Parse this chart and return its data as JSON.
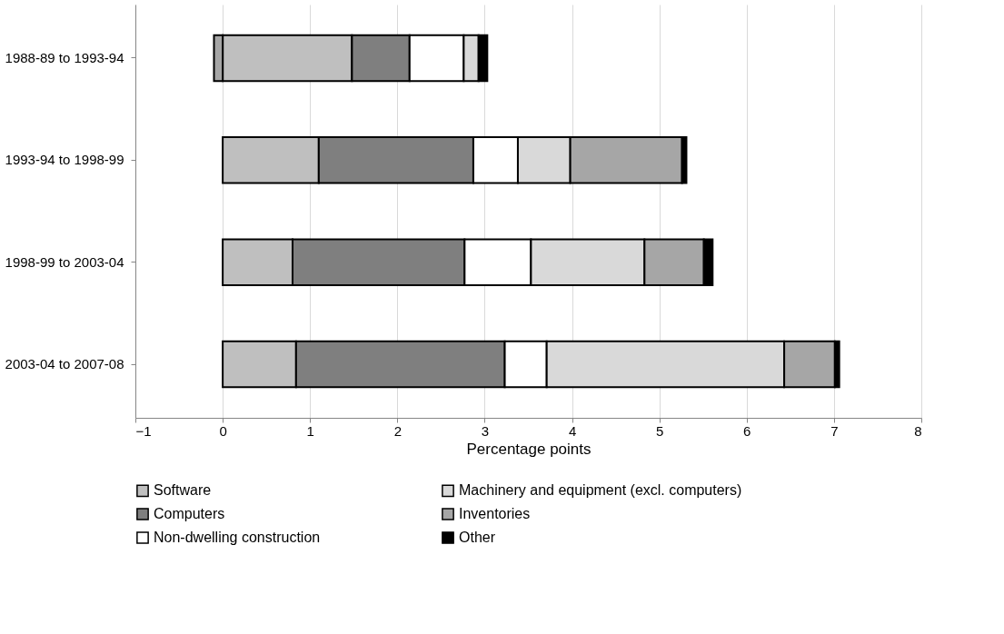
{
  "chart_data": {
    "type": "bar",
    "orientation": "horizontal",
    "stacked": true,
    "xlabel": "Percentage points",
    "categories": [
      "1988-89 to 1993-94",
      "1993-94 to 1998-99",
      "1998-99 to 2003-04",
      "2003-04 to 2007-08"
    ],
    "series": [
      {
        "name": "Software",
        "color": "#bfbfbf",
        "values": [
          1.48,
          1.1,
          0.8,
          0.84
        ]
      },
      {
        "name": "Computers",
        "color": "#7f7f7f",
        "values": [
          0.66,
          1.77,
          1.97,
          2.39
        ]
      },
      {
        "name": "Non-dwelling construction",
        "color": "#ffffff",
        "values": [
          0.62,
          0.51,
          0.76,
          0.48
        ]
      },
      {
        "name": "Machinery and equipment (excl. computers)",
        "color": "#d9d9d9",
        "values": [
          0.17,
          0.6,
          1.3,
          2.72
        ]
      },
      {
        "name": "Inventories",
        "color": "#a6a6a6",
        "values": [
          -0.1,
          1.28,
          0.68,
          0.58
        ]
      },
      {
        "name": "Other",
        "color": "#000000",
        "values": [
          0.1,
          0.05,
          0.1,
          0.05
        ]
      }
    ],
    "xlim": [
      -1,
      8
    ],
    "xticks": [
      -1,
      0,
      1,
      2,
      3,
      4,
      5,
      6,
      7,
      8
    ],
    "grid": "x",
    "legend": "bottom"
  }
}
